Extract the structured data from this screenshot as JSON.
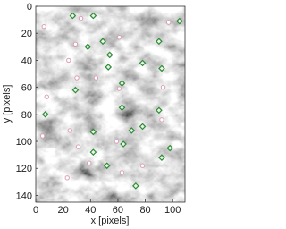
{
  "chart_data": {
    "type": "scatter",
    "xlabel": "x [pixels]",
    "ylabel": "y [pixels]",
    "xlim": [
      0,
      109
    ],
    "ylim": [
      0,
      145
    ],
    "y_inverted": true,
    "xticks": [
      0,
      20,
      40,
      60,
      80,
      100
    ],
    "yticks": [
      0,
      20,
      40,
      60,
      80,
      100,
      120,
      140
    ],
    "series": [
      {
        "marker": "diamond",
        "color": "#2e8b3a",
        "x": [
          27,
          42,
          105,
          90,
          49,
          54,
          53,
          78,
          92,
          29,
          63,
          7,
          63,
          90,
          78,
          70,
          42,
          52,
          98,
          92,
          42,
          73,
          64,
          38
        ],
        "y": [
          7,
          7,
          11,
          26,
          26,
          36,
          45,
          42,
          46,
          62,
          57,
          80,
          75,
          77,
          89,
          92,
          93,
          118,
          105,
          112,
          108,
          133,
          102,
          30
        ]
      },
      {
        "marker": "dot",
        "color": "#d9a0b4",
        "x": [
          6,
          33,
          97,
          61,
          29,
          24,
          30,
          44,
          61,
          93,
          8,
          92,
          25,
          5,
          31,
          59,
          39,
          78,
          63,
          23
        ],
        "y": [
          15,
          9,
          12,
          23,
          28,
          40,
          53,
          53,
          61,
          60,
          67,
          84,
          92,
          96,
          104,
          100,
          116,
          118,
          123,
          127
        ]
      }
    ]
  }
}
